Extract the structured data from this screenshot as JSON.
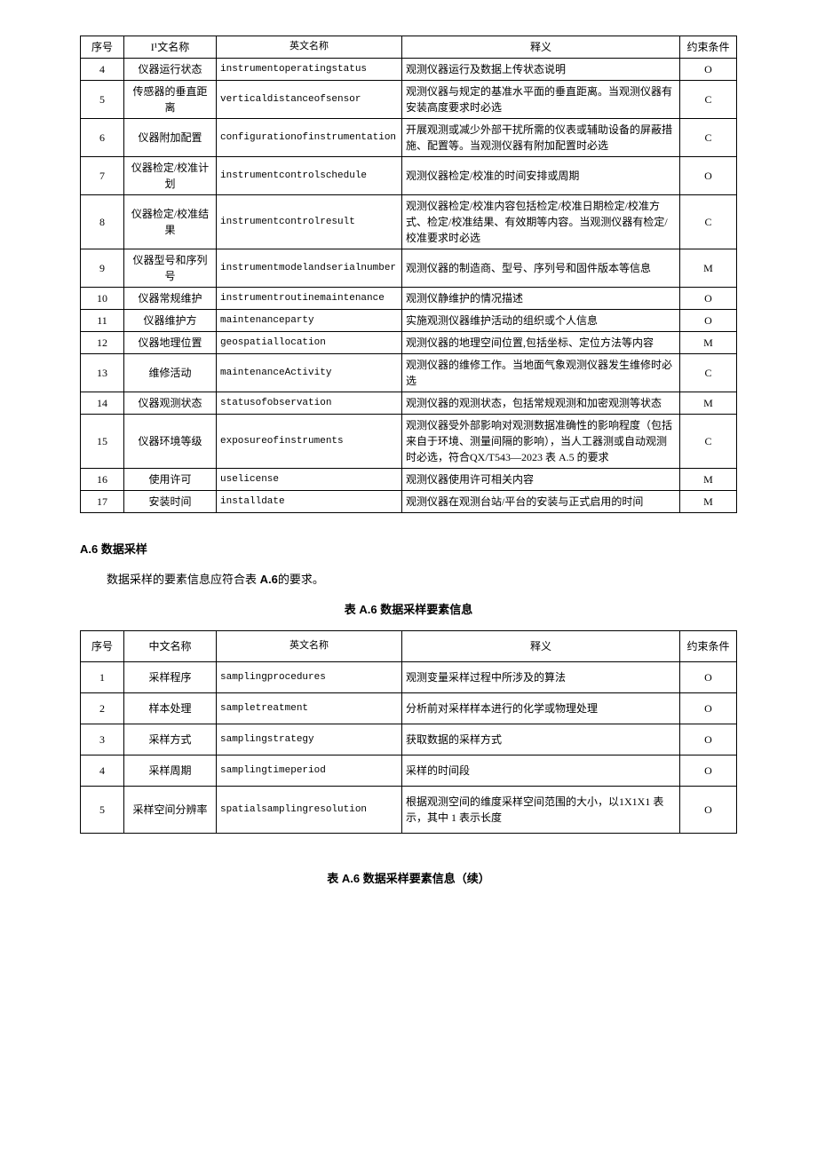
{
  "table1": {
    "headers": [
      "序号",
      "I¹文名称",
      "英文名称",
      "释义",
      "约束条件"
    ],
    "rows": [
      {
        "seq": "4",
        "cn": "仪器运行状态",
        "en": "instrumentoperatingstatus",
        "def": "观测仪器运行及数据上传状态说明",
        "cons": "O"
      },
      {
        "seq": "5",
        "cn": "传感器的垂直距离",
        "en": "verticaldistanceofsensor",
        "def": "观测仪器与规定的基准水平面的垂直距离。当观测仪器有安装高度要求时必选",
        "cons": "C"
      },
      {
        "seq": "6",
        "cn": "仪器附加配置",
        "en": "configurationofinstrumentation",
        "def": "开展观测或减少外部干扰所需的仪表或辅助设备的屏蔽措施、配置等。当观测仪器有附加配置时必选",
        "cons": "C"
      },
      {
        "seq": "7",
        "cn": "仪器检定/校准计划",
        "en": "instrumentcontrolschedule",
        "def": "观测仪器检定/校准的时间安排或周期",
        "cons": "O"
      },
      {
        "seq": "8",
        "cn": "仪器检定/校准结果",
        "en": "instrumentcontrolresult",
        "def": "观测仪器检定/校准内容包括检定/校准日期检定/校准方式、检定/校准结果、有效期等内容。当观测仪器有检定/校准要求时必选",
        "cons": "C"
      },
      {
        "seq": "9",
        "cn": "仪器型号和序列号",
        "en": "instrumentmodelandserialnumber",
        "def": "观测仪器的制造商、型号、序列号和固件版本等信息",
        "cons": "M"
      },
      {
        "seq": "10",
        "cn": "仪器常规维护",
        "en": "instrumentroutinemaintenance",
        "def": "观测仪静维护的情况描述",
        "cons": "O"
      },
      {
        "seq": "11",
        "cn": "仪器维护方",
        "en": "maintenanceparty",
        "def": "实施观测仪器维护活动的组织或个人信息",
        "cons": "O"
      },
      {
        "seq": "12",
        "cn": "仪器地理位置",
        "en": "geospatiallocation",
        "def": "观测仪器的地理空间位置,包括坐标、定位方法等内容",
        "cons": "M"
      },
      {
        "seq": "13",
        "cn": "维修活动",
        "en": "maintenanceActivity",
        "def": "观测仪器的维修工作。当地面气象观测仪器发生维修时必选",
        "cons": "C"
      },
      {
        "seq": "14",
        "cn": "仪器观测状态",
        "en": "statusofobservation",
        "def": "观测仪器的观测状态，包括常规观测和加密观测等状态",
        "cons": "M"
      },
      {
        "seq": "15",
        "cn": "仪器环境等级",
        "en": "exposureofinstruments",
        "def": "观测仪器受外部影响对观测数据准确性的影响程度（包括来自于环境、测量间隔的影响），当人工器测或自动观测时必选，符合QX/T543—2023 表 A.5 的要求",
        "cons": "C"
      },
      {
        "seq": "16",
        "cn": "使用许可",
        "en": "uselicense",
        "def": "观测仪器使用许可相关内容",
        "cons": "M"
      },
      {
        "seq": "17",
        "cn": "安装时间",
        "en": "installdate",
        "def": "观测仪器在观测台站/平台的安装与正式启用的时间",
        "cons": "M"
      }
    ]
  },
  "section": {
    "heading_prefix": "A.6",
    "heading_text": "数据采样",
    "body_prefix": "数据采样的要素信息应符合表",
    "body_bold": " A.6",
    "body_suffix": "的要求。",
    "caption1_prefix": "表",
    "caption1_bold": " A.6 ",
    "caption1_suffix": "数据采样要素信息",
    "caption2_prefix": "表",
    "caption2_bold": " A.6 ",
    "caption2_suffix": "数据采样要素信息（续）"
  },
  "table2": {
    "headers": [
      "序号",
      "中文名称",
      "英文名称",
      "释义",
      "约束条件"
    ],
    "rows": [
      {
        "seq": "1",
        "cn": "采样程序",
        "en": "samplingprocedures",
        "def": "观测变量采样过程中所涉及的算法",
        "cons": "O"
      },
      {
        "seq": "2",
        "cn": "样本处理",
        "en": "sampletreatment",
        "def": "分析前对采样样本进行的化学或物理处理",
        "cons": "O"
      },
      {
        "seq": "3",
        "cn": "采样方式",
        "en": "samplingstrategy",
        "def": "获取数据的采样方式",
        "cons": "O"
      },
      {
        "seq": "4",
        "cn": "采样周期",
        "en": "samplingtimeperiod",
        "def": "采样的时间段",
        "cons": "O"
      },
      {
        "seq": "5",
        "cn": "采样空间分辨率",
        "en": "spatialsamplingresolution",
        "def": "根据观测空间的维度采样空间范围的大小，以1X1X1 表示，其中 1 表示长度",
        "cons": "O"
      }
    ]
  }
}
